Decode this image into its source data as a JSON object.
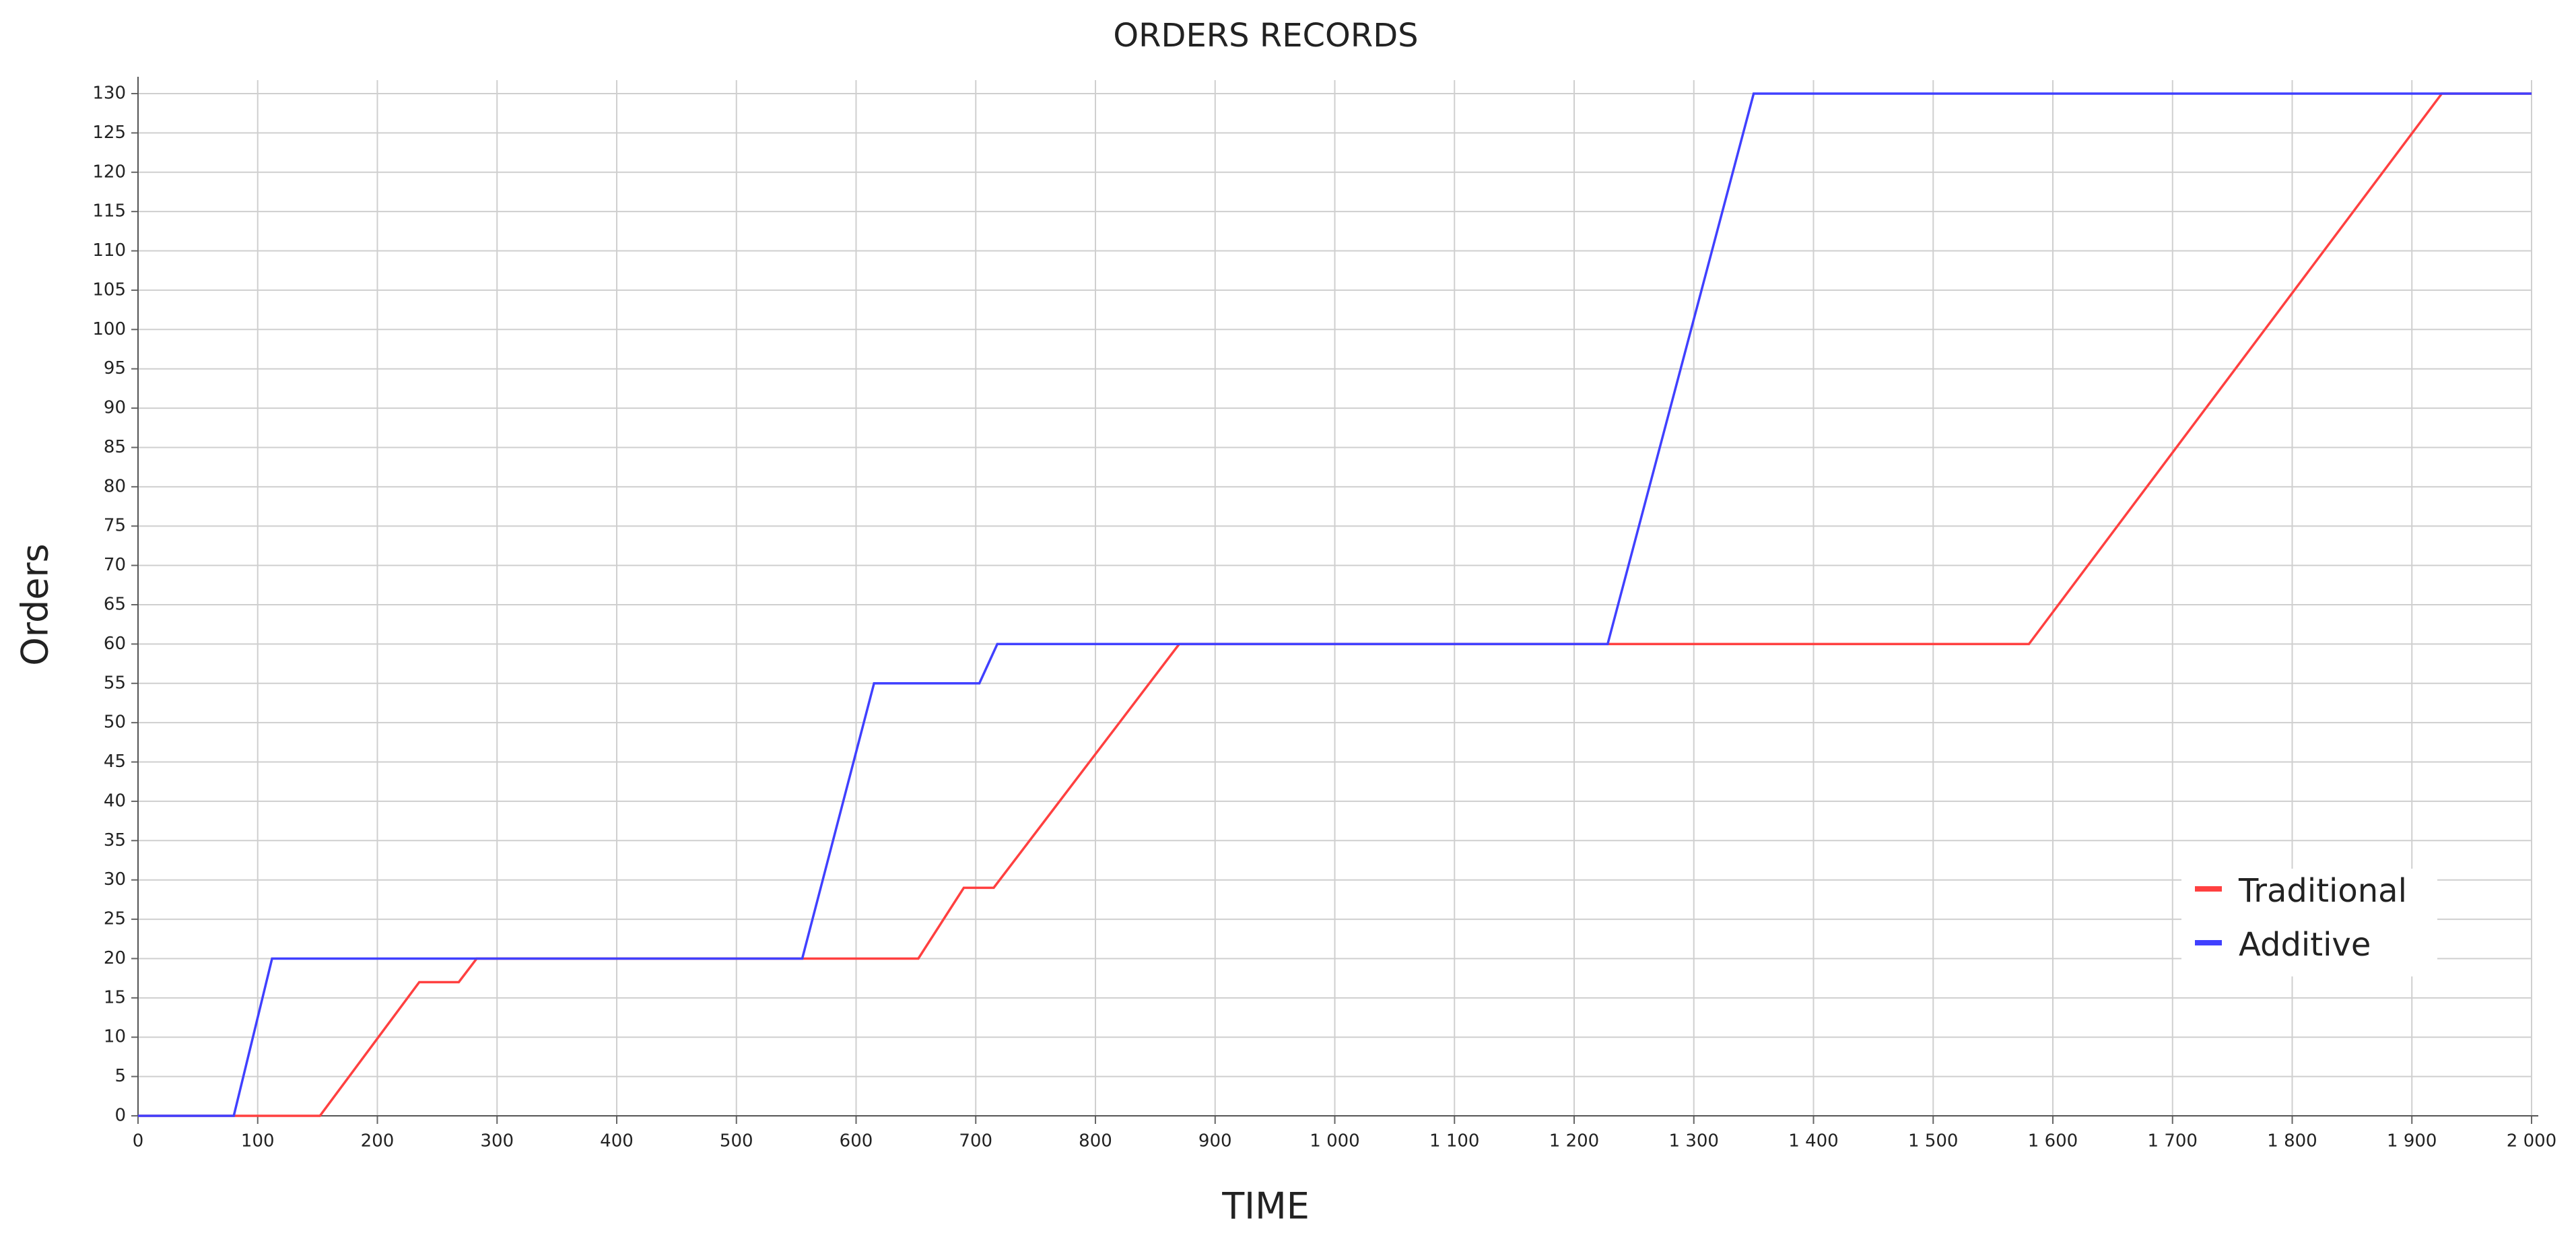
{
  "chart_data": {
    "type": "line",
    "title": "ORDERS RECORDS",
    "x_label": "TIME",
    "y_label": "Orders",
    "xlim": [
      0,
      2000
    ],
    "ylim": [
      0,
      130
    ],
    "xticks": [
      0,
      100,
      200,
      300,
      400,
      500,
      600,
      700,
      800,
      900,
      {
        "value": 1000,
        "label": "1 000"
      },
      {
        "value": 1100,
        "label": "1 100"
      },
      {
        "value": 1200,
        "label": "1 200"
      },
      {
        "value": 1300,
        "label": "1 300"
      },
      {
        "value": 1400,
        "label": "1 400"
      },
      {
        "value": 1500,
        "label": "1 500"
      },
      {
        "value": 1600,
        "label": "1 600"
      },
      {
        "value": 1700,
        "label": "1 700"
      },
      {
        "value": 1800,
        "label": "1 800"
      },
      {
        "value": 1900,
        "label": "1 900"
      },
      {
        "value": 2000,
        "label": "2 000"
      }
    ],
    "yticks": [
      0,
      5,
      10,
      15,
      20,
      25,
      30,
      35,
      40,
      45,
      50,
      55,
      60,
      65,
      70,
      75,
      80,
      85,
      90,
      95,
      100,
      105,
      110,
      115,
      120,
      125,
      130
    ],
    "grid": true,
    "legend": "lower right",
    "series": [
      {
        "name": "Traditional",
        "color": "#ff4040",
        "x": [
          0,
          152,
          235,
          268,
          283,
          652,
          690,
          715,
          870,
          1580,
          1925,
          2000
        ],
        "values": [
          0,
          0,
          17,
          17,
          20,
          20,
          29,
          29,
          60,
          60,
          130,
          130
        ]
      },
      {
        "name": "Additive",
        "color": "#4040ff",
        "x": [
          0,
          80,
          112,
          555,
          615,
          703,
          718,
          1228,
          1350,
          2000
        ],
        "values": [
          0,
          0,
          20,
          20,
          55,
          55,
          60,
          60,
          130,
          130
        ]
      }
    ]
  }
}
